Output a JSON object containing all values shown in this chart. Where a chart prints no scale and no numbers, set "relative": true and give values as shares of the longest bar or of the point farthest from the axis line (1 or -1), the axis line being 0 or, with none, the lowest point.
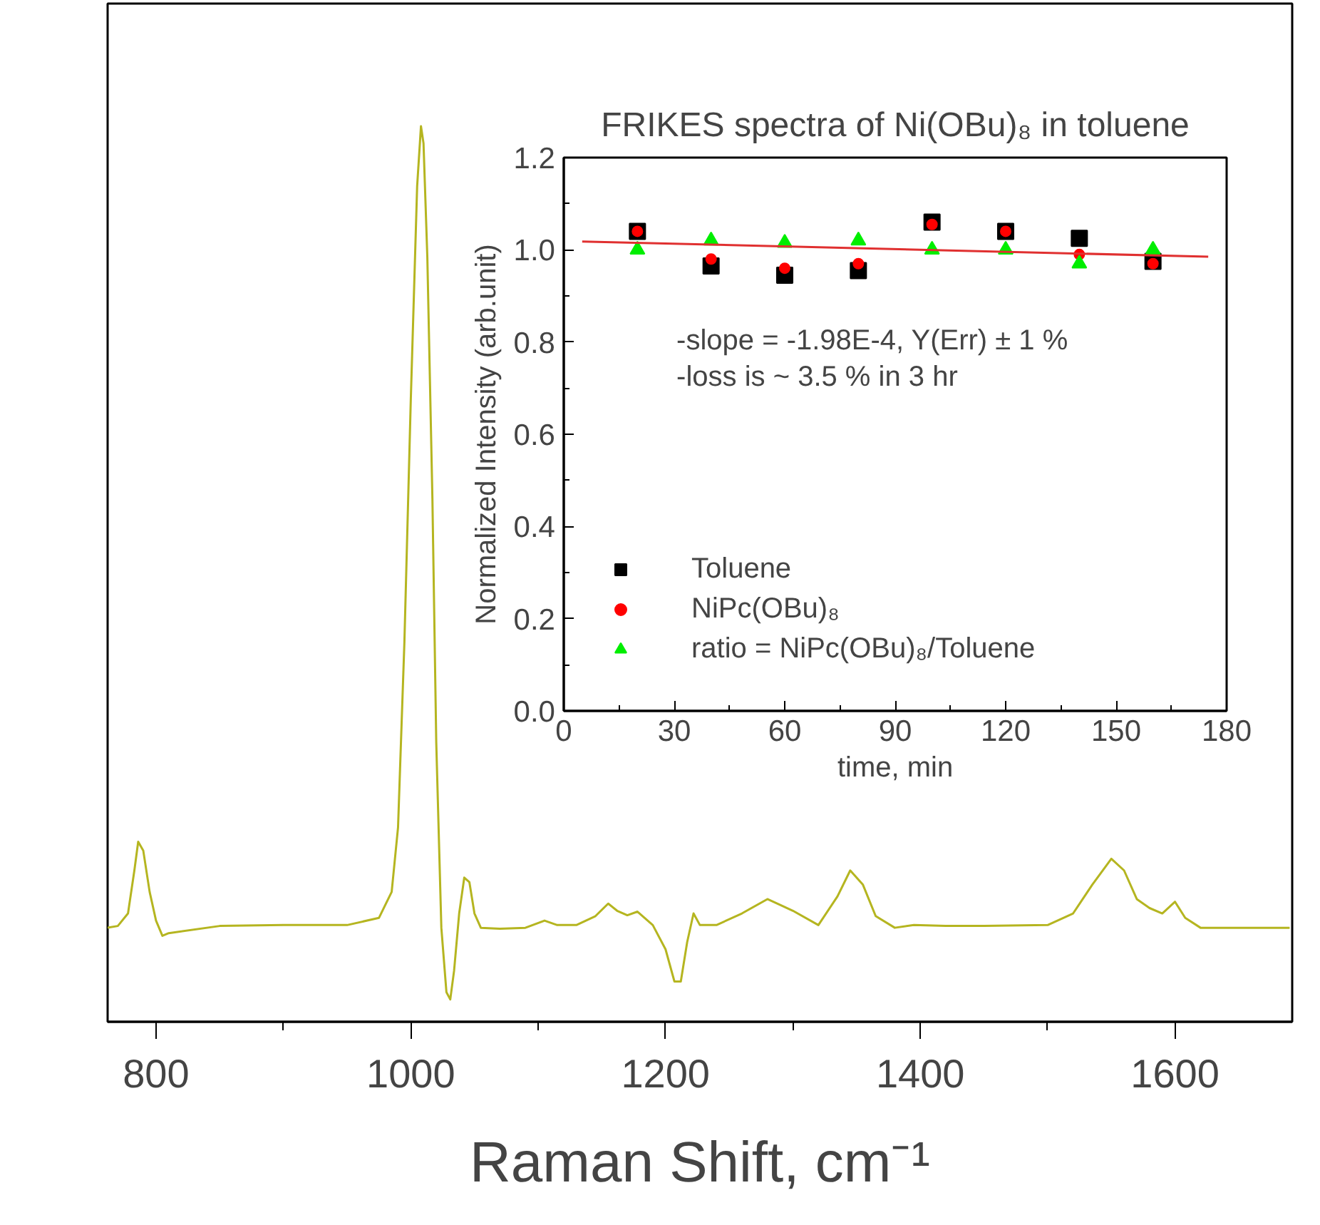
{
  "chart_data": [
    {
      "type": "line",
      "relative": true,
      "xlabel": "Raman Shift, cm⁻¹",
      "xlim": [
        762,
        1692
      ],
      "xticks": [
        800,
        {
          "value": 900,
          "label": null
        },
        1000,
        {
          "value": 1100,
          "label": null
        },
        1200,
        {
          "value": 1300,
          "label": null
        },
        1400,
        {
          "value": 1500,
          "label": null
        },
        1600
      ],
      "grid": false,
      "legend": false,
      "line_style": "solid",
      "series": [
        {
          "color": "#b5b520",
          "x": [
            762,
            770,
            778,
            783,
            786,
            790,
            795,
            800,
            805,
            810,
            850,
            900,
            950,
            975,
            985,
            990,
            995,
            1000,
            1005,
            1008,
            1010,
            1013,
            1017,
            1020,
            1024,
            1028,
            1031,
            1034,
            1038,
            1042,
            1046,
            1050,
            1055,
            1070,
            1090,
            1105,
            1115,
            1130,
            1145,
            1155,
            1162,
            1170,
            1178,
            1190,
            1200,
            1207,
            1212,
            1217,
            1222,
            1227,
            1240,
            1260,
            1280,
            1300,
            1320,
            1335,
            1345,
            1355,
            1365,
            1380,
            1395,
            1420,
            1450,
            1500,
            1520,
            1535,
            1550,
            1560,
            1570,
            1580,
            1590,
            1600,
            1608,
            1620,
            1650,
            1690
          ],
          "values": [
            0.105,
            0.107,
            0.121,
            0.169,
            0.201,
            0.191,
            0.145,
            0.113,
            0.096,
            0.099,
            0.107,
            0.108,
            0.108,
            0.116,
            0.145,
            0.217,
            0.424,
            0.694,
            0.933,
            1.0,
            0.981,
            0.854,
            0.583,
            0.312,
            0.105,
            0.033,
            0.025,
            0.057,
            0.121,
            0.161,
            0.156,
            0.121,
            0.105,
            0.104,
            0.105,
            0.113,
            0.108,
            0.108,
            0.118,
            0.132,
            0.124,
            0.119,
            0.123,
            0.108,
            0.081,
            0.045,
            0.045,
            0.089,
            0.121,
            0.108,
            0.108,
            0.121,
            0.137,
            0.124,
            0.108,
            0.14,
            0.169,
            0.153,
            0.118,
            0.105,
            0.108,
            0.107,
            0.107,
            0.108,
            0.121,
            0.153,
            0.182,
            0.169,
            0.137,
            0.127,
            0.121,
            0.134,
            0.116,
            0.105,
            0.105,
            0.105
          ]
        }
      ]
    },
    {
      "type": "scatter",
      "title": "FRIKES spectra of Ni(OBu)₈ in toluene",
      "xlabel": "time, min",
      "ylabel": "Normalized Intensity (arb.unit)",
      "xlim": [
        0,
        180
      ],
      "ylim": [
        0,
        1.2
      ],
      "xticks": [
        0,
        {
          "value": 15,
          "label": null
        },
        30,
        {
          "value": 45,
          "label": null
        },
        60,
        {
          "value": 75,
          "label": null
        },
        90,
        {
          "value": 105,
          "label": null
        },
        120,
        {
          "value": 135,
          "label": null
        },
        150,
        {
          "value": 165,
          "label": null
        },
        180
      ],
      "yticks": [
        {
          "value": 0,
          "label": "0.0"
        },
        {
          "value": 0.1,
          "label": null
        },
        0.2,
        {
          "value": 0.3,
          "label": null
        },
        0.4,
        {
          "value": 0.5,
          "label": null
        },
        0.6,
        {
          "value": 0.7,
          "label": null
        },
        0.8,
        {
          "value": 0.9,
          "label": null
        },
        {
          "value": 1.0,
          "label": "1.0"
        },
        {
          "value": 1.1,
          "label": null
        },
        1.2
      ],
      "grid": false,
      "legend": "bottom left",
      "annotations": [
        "-slope = -1.98E-4, Y(Err) ± 1 %",
        "-loss is ~ 3.5 % in 3 hr"
      ],
      "series": [
        {
          "name": "Toluene",
          "color": "#000000",
          "marker": "square",
          "x": [
            20,
            40,
            60,
            80,
            100,
            120,
            140,
            160
          ],
          "values": [
            1.04,
            0.965,
            0.945,
            0.955,
            1.06,
            1.04,
            1.025,
            0.975
          ]
        },
        {
          "name": "NiPc(OBu)₈",
          "color": "#ff0000",
          "marker": "circle",
          "x": [
            20,
            40,
            60,
            80,
            100,
            120,
            140,
            160
          ],
          "values": [
            1.04,
            0.98,
            0.96,
            0.97,
            1.055,
            1.04,
            0.99,
            0.97
          ]
        },
        {
          "name": "ratio = NiPc(OBu)₈/Toluene",
          "color": "#00ee00",
          "marker": "triangle",
          "x": [
            20,
            40,
            60,
            80,
            100,
            120,
            140,
            160
          ],
          "values": [
            1.0,
            1.02,
            1.015,
            1.02,
            1.0,
            1.0,
            0.97,
            1.0
          ]
        },
        {
          "type": "line",
          "color": "#e03030",
          "x": [
            5,
            175
          ],
          "values": [
            1.018,
            0.985
          ]
        }
      ]
    }
  ]
}
